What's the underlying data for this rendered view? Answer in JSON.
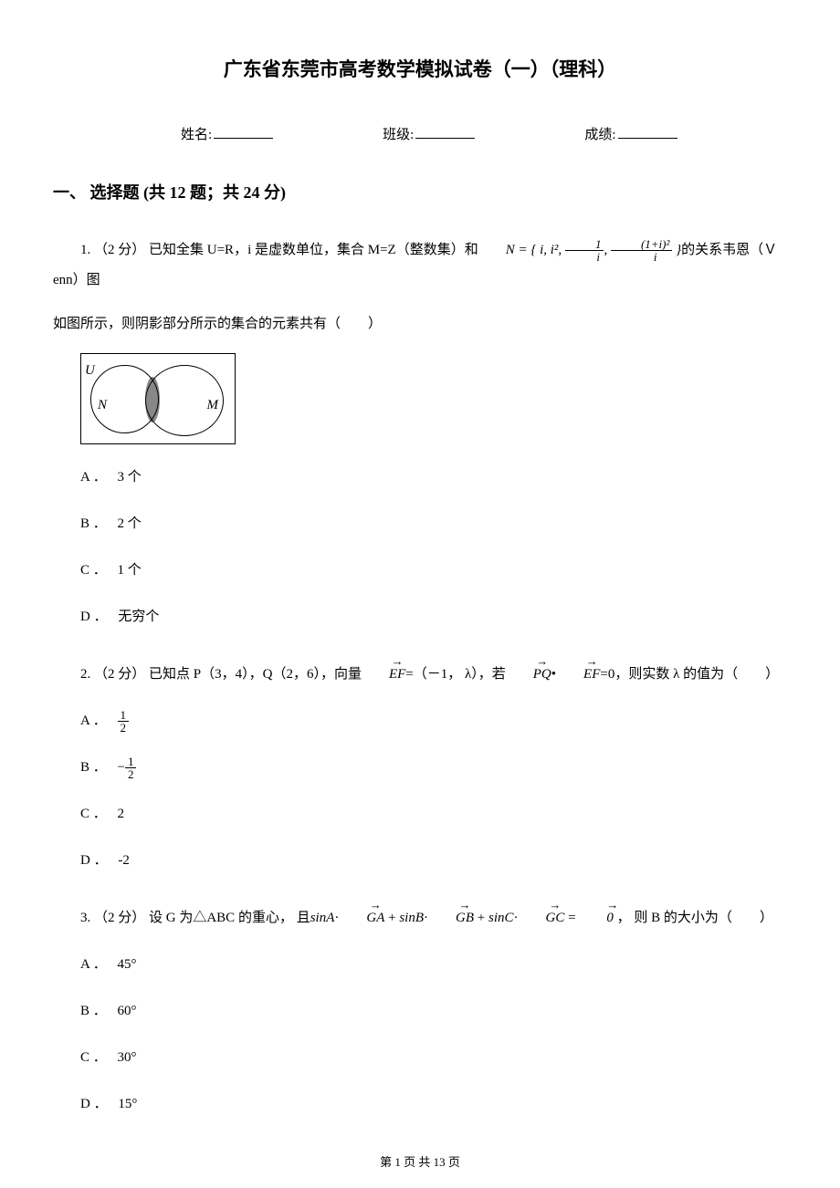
{
  "title": "广东省东莞市高考数学模拟试卷（一）（理科）",
  "info": {
    "name_label": "姓名:",
    "class_label": "班级:",
    "score_label": "成绩:"
  },
  "section1": {
    "header": "一、 选择题 (共 12 题；共 24 分)"
  },
  "q1": {
    "number": "1.",
    "points": "（2 分）",
    "text_part1": "已知全集 U=R，i 是虚数单位，集合 M=Z（整数集）和",
    "set_n": "N",
    "set_equals": " = ",
    "set_content": "{ i, i², ",
    "frac1_num": "1",
    "frac1_den": "i",
    "set_mid": ", ",
    "frac2_num": "(1+i)²",
    "frac2_den": "i",
    "set_end": " }",
    "text_part2": "的关系韦恩（Ｖenn）图",
    "text_line2": "如图所示，则阴影部分所示的集合的元素共有（　　）",
    "venn": {
      "u": "U",
      "n": "N",
      "m": "M"
    },
    "options": {
      "a_label": "A ．",
      "a_text": "3 个",
      "b_label": "B ．",
      "b_text": "2 个",
      "c_label": "C ．",
      "c_text": "1 个",
      "d_label": "D ．",
      "d_text": "无穷个"
    }
  },
  "q2": {
    "number": "2.",
    "points": "（2 分）",
    "text_part1": "已知点 P（3，4），Q（2，6），向量",
    "ef": "EF",
    "text_part2": "=（－1， λ），若",
    "pq": "PQ",
    "dot": "•",
    "ef2": "EF",
    "text_part3": "=0，则实数 λ 的值为（　　）",
    "options": {
      "a_label": "A ．",
      "a_num": "1",
      "a_den": "2",
      "b_label": "B ．",
      "b_neg": "−",
      "b_num": "1",
      "b_den": "2",
      "c_label": "C ．",
      "c_text": "2",
      "d_label": "D ．",
      "d_text": "-2"
    }
  },
  "q3": {
    "number": "3.",
    "points": "（2 分）",
    "text_part1": "设 G 为△ABC 的重心， 且",
    "expr_sina": "sinA",
    "ga": "GA",
    "plus1": " + ",
    "expr_sinb": "sinB",
    "gb": "GB",
    "plus2": " + ",
    "expr_sinc": "sinC",
    "gc": "GC",
    "equals": " = ",
    "zero": "0",
    "text_part2": " ，  则 B 的大小为（　　）",
    "options": {
      "a_label": "A ．",
      "a_text": "45°",
      "b_label": "B ．",
      "b_text": "60°",
      "c_label": "C ．",
      "c_text": "30°",
      "d_label": "D ．",
      "d_text": "15°"
    }
  },
  "footer": {
    "text": "第 1 页 共 13 页"
  }
}
